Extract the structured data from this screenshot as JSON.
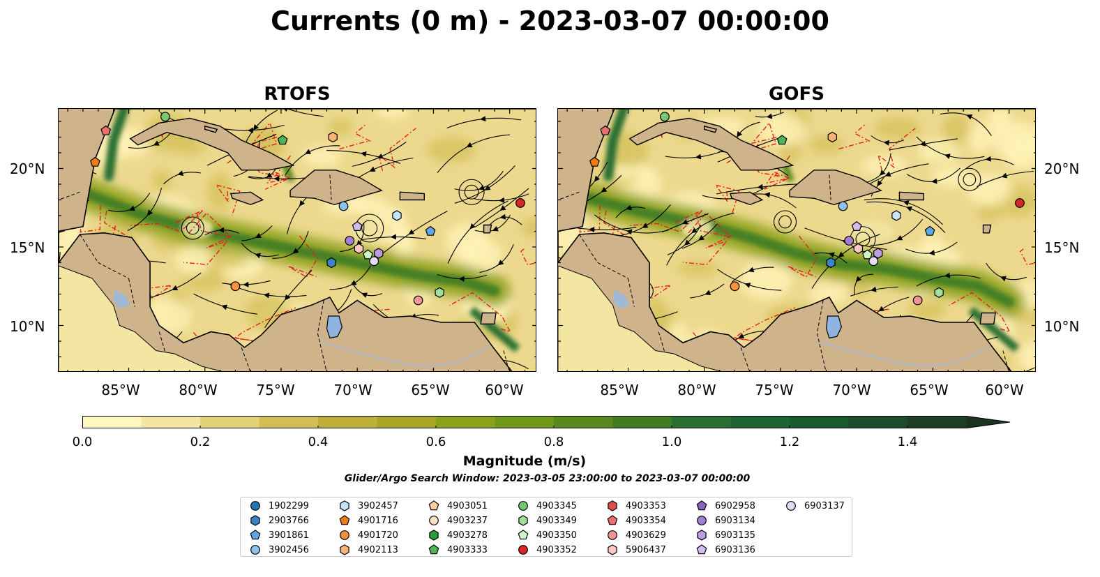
{
  "title": "Currents (0 m) - 2023-03-07 00:00:00",
  "panels": [
    {
      "title": "RTOFS"
    },
    {
      "title": "GOFS"
    }
  ],
  "lat_labels": [
    "20°N",
    "15°N",
    "10°N"
  ],
  "lon_labels": [
    "85°W",
    "80°W",
    "75°W",
    "70°W",
    "65°W",
    "60°W"
  ],
  "colorbar": {
    "label": "Magnitude (m/s)",
    "ticks": [
      "0.0",
      "0.2",
      "0.4",
      "0.6",
      "0.8",
      "1.0",
      "1.2",
      "1.4"
    ],
    "range": [
      0,
      1.5
    ],
    "extend": "max",
    "colors": [
      "#fff7bf",
      "#f3e6a2",
      "#e4d27a",
      "#d2be55",
      "#beb03a",
      "#a8a628",
      "#8ca01a",
      "#6f9718",
      "#57891c",
      "#3f7c24",
      "#2a6f30",
      "#1e6534",
      "#1b5a30",
      "#1d4d2a",
      "#1e3f24",
      "#1d3321"
    ]
  },
  "search_window": "Glider/Argo Search Window: 2023-03-05 23:00:00 to 2023-03-07 00:00:00",
  "legend": [
    {
      "label": "1902299",
      "marker": "circle",
      "color": "#1f77b4"
    },
    {
      "label": "2903766",
      "marker": "hexagon",
      "color": "#3d84c6"
    },
    {
      "label": "3901861",
      "marker": "pentagon",
      "color": "#5fa7e3"
    },
    {
      "label": "3902456",
      "marker": "circle",
      "color": "#8ec3ee"
    },
    {
      "label": "3902457",
      "marker": "hexagon",
      "color": "#c6e4fa"
    },
    {
      "label": "4901716",
      "marker": "pentagon",
      "color": "#f07c14"
    },
    {
      "label": "4901720",
      "marker": "circle",
      "color": "#f6923b"
    },
    {
      "label": "4902113",
      "marker": "hexagon",
      "color": "#f9b374"
    },
    {
      "label": "4903051",
      "marker": "pentagon",
      "color": "#fbcf9e"
    },
    {
      "label": "4903237",
      "marker": "circle",
      "color": "#fde3c6"
    },
    {
      "label": "4903278",
      "marker": "hexagon",
      "color": "#2a9e3a"
    },
    {
      "label": "4903333",
      "marker": "pentagon",
      "color": "#4cb752"
    },
    {
      "label": "4903345",
      "marker": "circle",
      "color": "#75c874"
    },
    {
      "label": "4903349",
      "marker": "hexagon",
      "color": "#a3df9c"
    },
    {
      "label": "4903350",
      "marker": "pentagon",
      "color": "#cdf5c5"
    },
    {
      "label": "4903352",
      "marker": "circle",
      "color": "#d7262a"
    },
    {
      "label": "4903353",
      "marker": "hexagon",
      "color": "#e14b4d"
    },
    {
      "label": "4903354",
      "marker": "pentagon",
      "color": "#ec6e6e"
    },
    {
      "label": "4903629",
      "marker": "circle",
      "color": "#f29494"
    },
    {
      "label": "5906437",
      "marker": "hexagon",
      "color": "#fbc7c4"
    },
    {
      "label": "6902958",
      "marker": "pentagon",
      "color": "#8a63c2"
    },
    {
      "label": "6903134",
      "marker": "circle",
      "color": "#a47fd4"
    },
    {
      "label": "6903135",
      "marker": "hexagon",
      "color": "#bb9de2"
    },
    {
      "label": "6903136",
      "marker": "pentagon",
      "color": "#d1bdee"
    },
    {
      "label": "6903137",
      "marker": "circle",
      "color": "#e7dbf8"
    }
  ],
  "observations": [
    {
      "id": "4903354",
      "lon": -86.5,
      "lat": 22.4
    },
    {
      "id": "4901716",
      "lon": -87.2,
      "lat": 20.4
    },
    {
      "id": "4903345",
      "lon": -82.6,
      "lat": 23.3
    },
    {
      "id": "4903333",
      "lon": -74.9,
      "lat": 21.8
    },
    {
      "id": "4902113",
      "lon": -71.6,
      "lat": 22.0
    },
    {
      "id": "3902456",
      "lon": -70.9,
      "lat": 17.6
    },
    {
      "id": "3902457",
      "lon": -67.4,
      "lat": 17.0
    },
    {
      "id": "3901861",
      "lon": -65.2,
      "lat": 16.0
    },
    {
      "id": "4903352",
      "lon": -59.3,
      "lat": 17.8
    },
    {
      "id": "6903136",
      "lon": -70.0,
      "lat": 16.3
    },
    {
      "id": "6903134",
      "lon": -70.5,
      "lat": 15.4
    },
    {
      "id": "5906437",
      "lon": -69.9,
      "lat": 14.9
    },
    {
      "id": "4903350",
      "lon": -69.3,
      "lat": 14.5
    },
    {
      "id": "6903135",
      "lon": -68.6,
      "lat": 14.6
    },
    {
      "id": "6903137",
      "lon": -68.9,
      "lat": 14.1
    },
    {
      "id": "2903766",
      "lon": -71.7,
      "lat": 14.0
    },
    {
      "id": "4901720",
      "lon": -78.0,
      "lat": 12.5
    },
    {
      "id": "4903349",
      "lon": -64.6,
      "lat": 12.1
    },
    {
      "id": "4903629",
      "lon": -66.0,
      "lat": 11.6
    }
  ]
}
